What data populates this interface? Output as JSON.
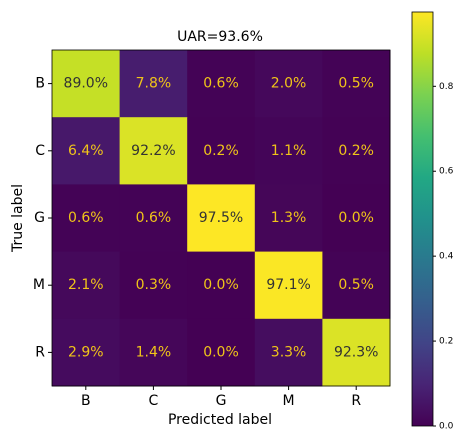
{
  "chart_data": {
    "type": "heatmap",
    "title": "UAR=93.6%",
    "x_label": "Predicted label",
    "y_label": "True label",
    "x_categories": [
      "B",
      "C",
      "G",
      "M",
      "R"
    ],
    "y_categories": [
      "B",
      "C",
      "G",
      "M",
      "R"
    ],
    "values": [
      [
        0.89,
        0.078,
        0.006,
        0.02,
        0.005
      ],
      [
        0.064,
        0.922,
        0.002,
        0.011,
        0.002
      ],
      [
        0.006,
        0.006,
        0.975,
        0.013,
        0.0
      ],
      [
        0.021,
        0.003,
        0.0,
        0.971,
        0.005
      ],
      [
        0.029,
        0.014,
        0.0,
        0.033,
        0.923
      ]
    ],
    "value_labels": [
      [
        "89.0%",
        "7.8%",
        "0.6%",
        "2.0%",
        "0.5%"
      ],
      [
        "6.4%",
        "92.2%",
        "0.2%",
        "1.1%",
        "0.2%"
      ],
      [
        "0.6%",
        "0.6%",
        "97.5%",
        "1.3%",
        "0.0%"
      ],
      [
        "2.1%",
        "0.3%",
        "0.0%",
        "97.1%",
        "0.5%"
      ],
      [
        "2.9%",
        "1.4%",
        "0.0%",
        "3.3%",
        "92.3%"
      ]
    ],
    "colormap": "viridis",
    "zlim": [
      0,
      0.975
    ],
    "zticks": [
      {
        "value": 0,
        "label": "0.0"
      },
      0.2,
      0.4,
      0.6,
      0.8
    ]
  }
}
